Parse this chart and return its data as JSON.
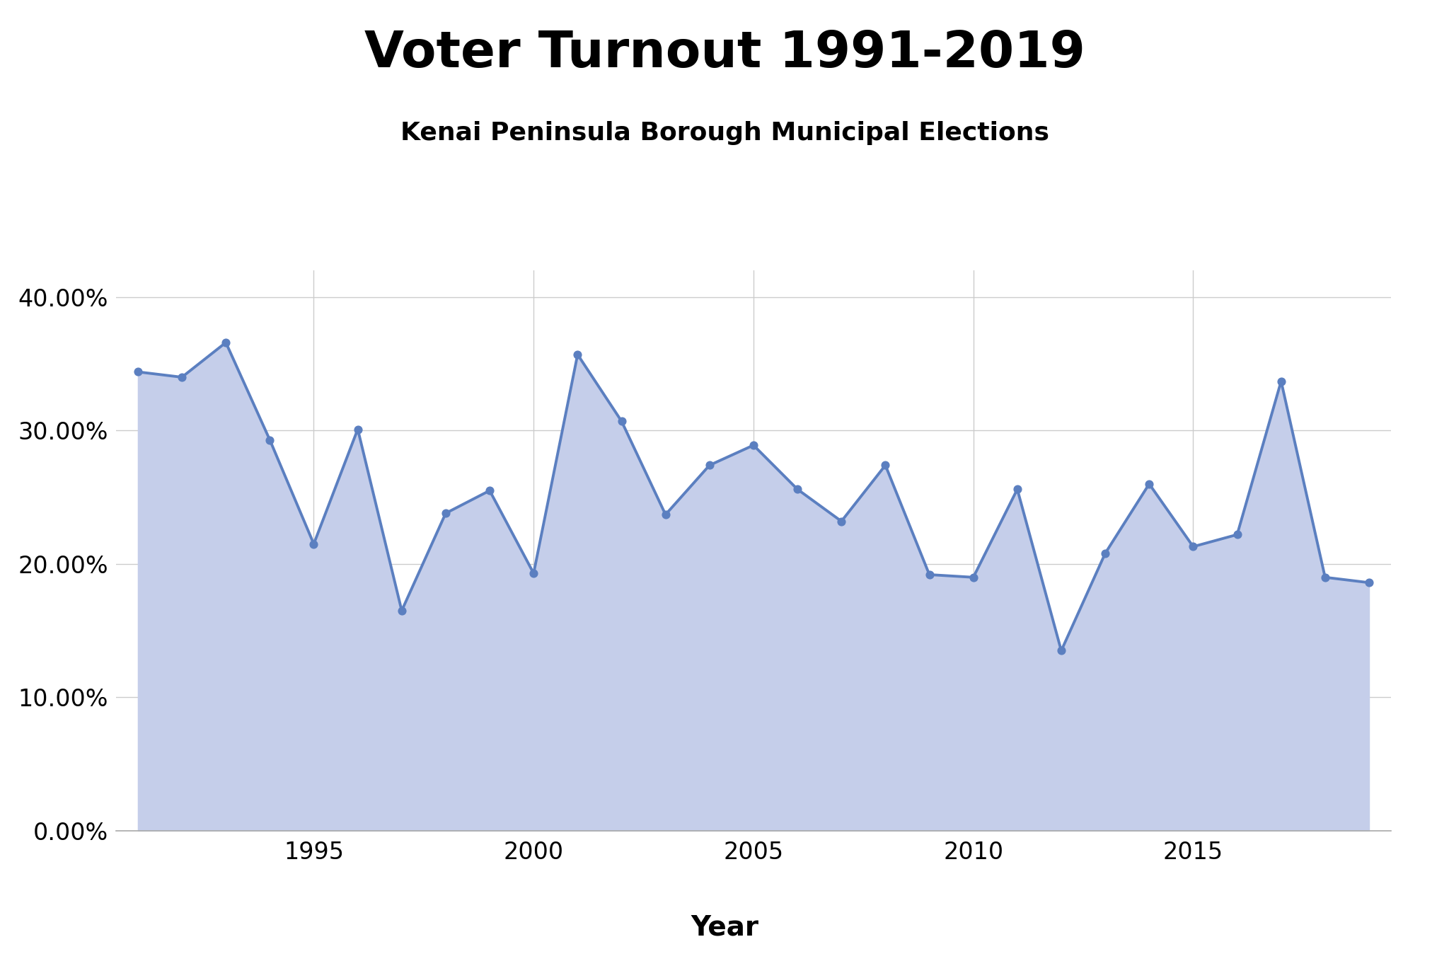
{
  "title": "Voter Turnout 1991-2019",
  "subtitle": "Kenai Peninsula Borough Municipal Elections",
  "xlabel": "Year",
  "ylabel": "",
  "years": [
    1991,
    1992,
    1993,
    1994,
    1995,
    1996,
    1997,
    1998,
    1999,
    2000,
    2001,
    2002,
    2003,
    2004,
    2005,
    2006,
    2007,
    2008,
    2009,
    2010,
    2011,
    2012,
    2013,
    2014,
    2015,
    2016,
    2017,
    2018,
    2019
  ],
  "turnout": [
    0.344,
    0.34,
    0.366,
    0.293,
    0.215,
    0.301,
    0.165,
    0.238,
    0.255,
    0.193,
    0.357,
    0.307,
    0.237,
    0.274,
    0.289,
    0.256,
    0.232,
    0.274,
    0.192,
    0.19,
    0.256,
    0.135,
    0.208,
    0.26,
    0.213,
    0.222,
    0.337,
    0.19,
    0.186
  ],
  "line_color": "#5b7fc0",
  "fill_color": "#c5ceea",
  "marker_color": "#5b7fc0",
  "background_color": "#ffffff",
  "title_fontsize": 52,
  "subtitle_fontsize": 26,
  "axis_label_fontsize": 28,
  "tick_fontsize": 24,
  "ylim": [
    0.0,
    0.42
  ],
  "yticks": [
    0.0,
    0.1,
    0.2,
    0.3,
    0.4
  ],
  "grid_color": "#cccccc",
  "title_weight": "bold",
  "subtitle_weight": "bold",
  "xtick_positions": [
    1995,
    2000,
    2005,
    2010,
    2015
  ]
}
